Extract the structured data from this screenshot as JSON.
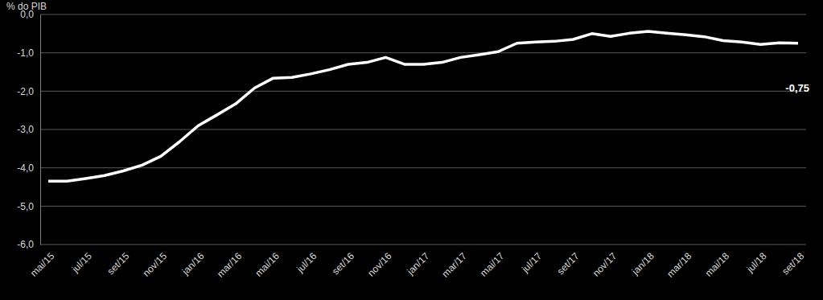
{
  "chart_data": {
    "type": "line",
    "y_label": "% do PIB",
    "categories": [
      "mai/15",
      null,
      "jul/15",
      null,
      "set/15",
      null,
      "nov/15",
      null,
      "jan/16",
      null,
      "mar/16",
      null,
      "mai/16",
      null,
      "jul/16",
      null,
      "set/16",
      null,
      "nov/16",
      null,
      "jan/17",
      null,
      "mar/17",
      null,
      "mai/17",
      null,
      "jul/17",
      null,
      "set/17",
      null,
      "nov/17",
      null,
      "jan/18",
      null,
      "mar/18",
      null,
      "mai/18",
      null,
      "jul/18",
      null,
      "set/18"
    ],
    "values": [
      -4.35,
      -4.35,
      -4.28,
      -4.2,
      -4.08,
      -3.93,
      -3.7,
      -3.32,
      -2.9,
      -2.62,
      -2.33,
      -1.92,
      -1.66,
      -1.64,
      -1.55,
      -1.44,
      -1.3,
      -1.25,
      -1.12,
      -1.3,
      -1.3,
      -1.25,
      -1.12,
      -1.05,
      -0.97,
      -0.75,
      -0.72,
      -0.7,
      -0.65,
      -0.5,
      -0.57,
      -0.49,
      -0.44,
      -0.49,
      -0.53,
      -0.58,
      -0.68,
      -0.72,
      -0.78,
      -0.74,
      -0.75
    ],
    "color": "#ffffff",
    "ylim": [
      -6,
      0
    ],
    "yticks": [
      {
        "value": 0,
        "label": "0,0"
      },
      {
        "value": -1,
        "label": "-1,0"
      },
      {
        "value": -2,
        "label": "-2,0"
      },
      {
        "value": -3,
        "label": "-3,0"
      },
      {
        "value": -4,
        "label": "-4,0"
      },
      {
        "value": -5,
        "label": "-5,0"
      },
      {
        "value": -6,
        "label": "-6,0"
      }
    ],
    "grid": true,
    "annotations": [
      {
        "text": "-0,75",
        "x": "set/18",
        "y": -0.75
      }
    ]
  }
}
